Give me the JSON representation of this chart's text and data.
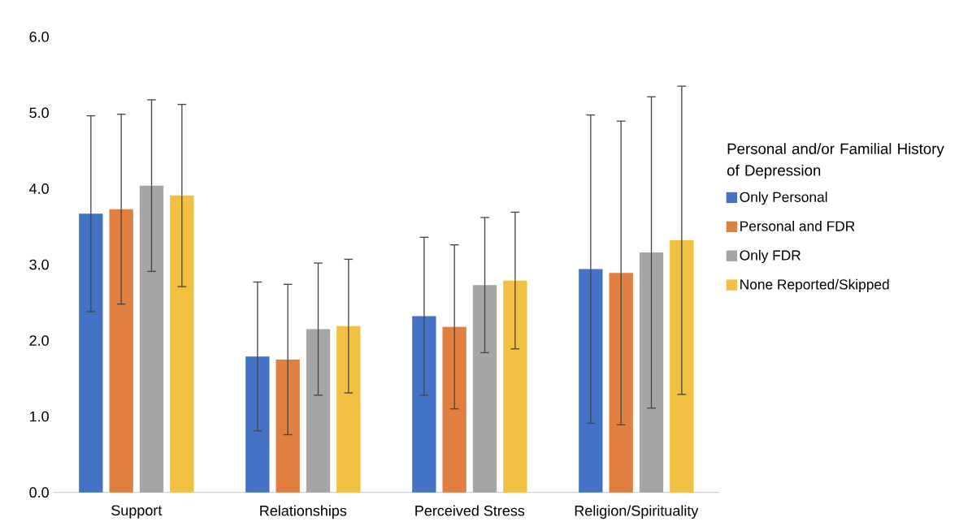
{
  "chart_data": {
    "type": "bar",
    "categories": [
      "Support",
      "Relationships",
      "Perceived Stress",
      "Religion/Spirituality"
    ],
    "series": [
      {
        "name": "Only Personal",
        "color": "#4472c4",
        "values": [
          3.67,
          1.79,
          2.32,
          2.94
        ],
        "errors": [
          1.29,
          0.98,
          1.04,
          2.03
        ]
      },
      {
        "name": "Personal and FDR",
        "color": "#e07f3f",
        "values": [
          3.73,
          1.75,
          2.18,
          2.89
        ],
        "errors": [
          1.25,
          0.99,
          1.08,
          2.0
        ]
      },
      {
        "name": "Only FDR",
        "color": "#a5a5a5",
        "values": [
          4.04,
          2.15,
          2.73,
          3.16
        ],
        "errors": [
          1.13,
          0.87,
          0.89,
          2.05
        ]
      },
      {
        "name": "None Reported/Skipped",
        "color": "#f2c040",
        "values": [
          3.91,
          2.19,
          2.79,
          3.32
        ],
        "errors": [
          1.2,
          0.88,
          0.9,
          2.03
        ]
      }
    ],
    "ylim": [
      0,
      6
    ],
    "yticks": [
      {
        "value": 0,
        "label": "0.0"
      },
      {
        "value": 1,
        "label": "1.0"
      },
      {
        "value": 2,
        "label": "2.0"
      },
      {
        "value": 3,
        "label": "3.0"
      },
      {
        "value": 4,
        "label": "4.0"
      },
      {
        "value": 5,
        "label": "5.0"
      },
      {
        "value": 6,
        "label": "6.0"
      }
    ],
    "legend_title": "Personal and/or Familial History of Depression",
    "legend": "right"
  }
}
